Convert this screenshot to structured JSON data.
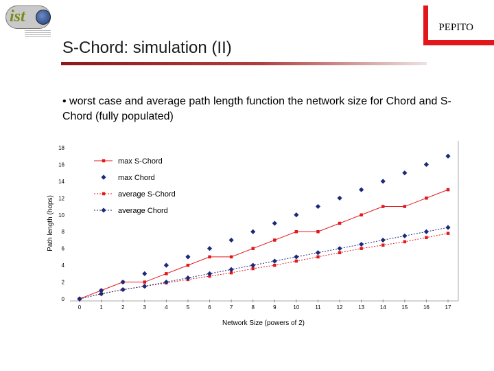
{
  "logo": {
    "text": "ist"
  },
  "header": {
    "brand": "PEPITO",
    "title": "S-Chord: simulation (II)"
  },
  "bullet": "• worst case and average path length function the network size for Chord and S-Chord (fully populated)",
  "colors": {
    "red": "#e3171b",
    "chord": "#1a2a7a",
    "title_rule": "#8b1a1a"
  },
  "chart_data": {
    "type": "line",
    "xlabel": "Network Size (powers of 2)",
    "ylabel": "Path length (hops)",
    "x": [
      0,
      1,
      2,
      3,
      4,
      5,
      6,
      7,
      8,
      9,
      10,
      11,
      12,
      13,
      14,
      15,
      16,
      17
    ],
    "xlim": [
      0,
      17
    ],
    "ylim": [
      0,
      18
    ],
    "yticks": [
      0,
      2,
      4,
      6,
      8,
      10,
      12,
      14,
      16,
      18
    ],
    "series": [
      {
        "name": "max S-Chord",
        "marker": "square",
        "line": "solid",
        "color": "#e3171b",
        "values": [
          0,
          1,
          2,
          2,
          3,
          4,
          5,
          5,
          6,
          7,
          8,
          8,
          9,
          10,
          11,
          11,
          12,
          13
        ]
      },
      {
        "name": "max Chord",
        "marker": "diamond",
        "line": "none",
        "color": "#1a2a7a",
        "values": [
          0,
          1,
          2,
          3,
          4,
          5,
          6,
          7,
          8,
          9,
          10,
          11,
          12,
          13,
          14,
          15,
          16,
          17
        ]
      },
      {
        "name": "average S-Chord",
        "marker": "square",
        "line": "dotted",
        "color": "#e3171b",
        "values": [
          0,
          0.6,
          1.1,
          1.5,
          1.9,
          2.3,
          2.7,
          3.1,
          3.6,
          4.0,
          4.5,
          5.0,
          5.5,
          6.0,
          6.4,
          6.8,
          7.3,
          7.8
        ]
      },
      {
        "name": "average Chord",
        "marker": "diamond",
        "line": "dotted",
        "color": "#1a2a7a",
        "values": [
          0,
          0.6,
          1.1,
          1.5,
          2.0,
          2.5,
          3.0,
          3.5,
          4.0,
          4.5,
          5.0,
          5.5,
          6.0,
          6.5,
          7.0,
          7.5,
          8.0,
          8.5
        ]
      }
    ],
    "legend_position": "top-left",
    "grid": false
  }
}
